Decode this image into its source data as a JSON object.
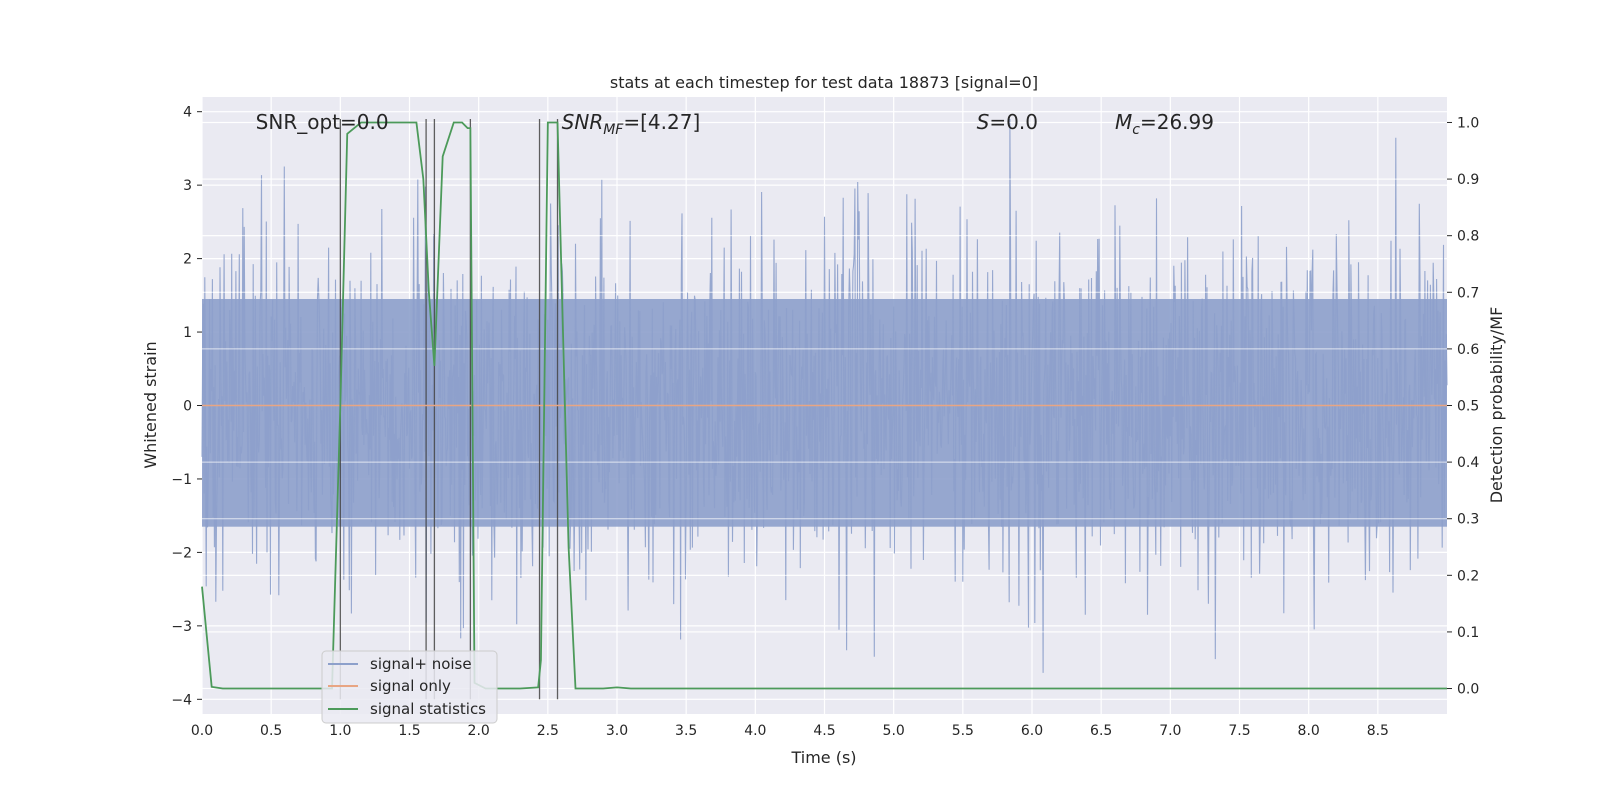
{
  "chart_data": {
    "type": "line",
    "title": "stats at each timestep for test data 18873 [signal=0]",
    "xlabel": "Time (s)",
    "ylabel_left": "Whitened strain",
    "ylabel_right": "Detection probability/MF",
    "xlim": [
      0.0,
      9.0
    ],
    "ylim_left": [
      -4.2,
      4.2
    ],
    "ylim_right": [
      -0.045,
      1.045
    ],
    "x_ticks": [
      0.0,
      0.5,
      1.0,
      1.5,
      2.0,
      2.5,
      3.0,
      3.5,
      4.0,
      4.5,
      5.0,
      5.5,
      6.0,
      6.5,
      7.0,
      7.5,
      8.0,
      8.5
    ],
    "x_tick_labels": [
      "0.0",
      "0.5",
      "1.0",
      "1.5",
      "2.0",
      "2.5",
      "3.0",
      "3.5",
      "4.0",
      "4.5",
      "5.0",
      "5.5",
      "6.0",
      "6.5",
      "7.0",
      "7.5",
      "8.0",
      "8.5"
    ],
    "y_left_ticks": [
      4,
      3,
      2,
      1,
      0,
      -1,
      -2,
      -3,
      -4
    ],
    "y_left_tick_labels": [
      "4",
      "3",
      "2",
      "1",
      "0",
      "−1",
      "−2",
      "−3",
      "−4"
    ],
    "y_right_ticks": [
      1.0,
      0.9,
      0.8,
      0.7,
      0.6,
      0.5,
      0.4,
      0.3,
      0.2,
      0.1,
      0.0
    ],
    "y_right_tick_labels": [
      "1.0",
      "0.9",
      "0.8",
      "0.7",
      "0.6",
      "0.5",
      "0.4",
      "0.3",
      "0.2",
      "0.1",
      "0.0"
    ],
    "grid": true,
    "annotations": [
      {
        "label": "SNR_opt=0.0",
        "x": 0.2,
        "y": 3.9
      },
      {
        "label": "SNR_MF=[4.27]",
        "x": 2.6,
        "y": 3.9
      },
      {
        "label": "S=0.0",
        "x": 5.6,
        "y": 3.9
      },
      {
        "label": "M_c=26.99",
        "x": 6.6,
        "y": 3.9
      }
    ],
    "vlines": [
      1.0,
      1.62,
      1.68,
      1.94,
      2.44,
      2.57
    ],
    "series": [
      {
        "name": "signal+ noise",
        "color": "#8da0cb",
        "axis": "left",
        "description": "whitened noise strain, approx uniform amplitude ±2.5 with peaks to ±3.8 across 0–9 s"
      },
      {
        "name": "signal only",
        "color": "#e8a583",
        "axis": "left",
        "x": [
          0.0,
          9.0
        ],
        "y": [
          0.0,
          0.0
        ]
      },
      {
        "name": "signal statistics",
        "color": "#4c9a5a",
        "axis": "right",
        "x": [
          0.0,
          0.07,
          0.15,
          0.5,
          0.9,
          0.94,
          1.0,
          1.05,
          1.15,
          1.3,
          1.4,
          1.55,
          1.6,
          1.64,
          1.68,
          1.74,
          1.82,
          1.88,
          1.92,
          1.94,
          1.97,
          2.05,
          2.15,
          2.3,
          2.43,
          2.45,
          2.5,
          2.57,
          2.65,
          2.7,
          2.9,
          3.0,
          3.1,
          9.0
        ],
        "y": [
          0.18,
          0.003,
          0.0,
          0.0,
          0.0,
          0.0,
          0.5,
          0.98,
          1.0,
          1.0,
          1.0,
          1.0,
          0.9,
          0.7,
          0.57,
          0.94,
          1.0,
          1.0,
          0.99,
          0.99,
          0.01,
          0.0,
          0.0,
          0.0,
          0.002,
          0.05,
          1.0,
          1.0,
          0.25,
          0.0,
          0.0,
          0.002,
          0.0,
          0.0
        ]
      }
    ],
    "legend": {
      "placement": "lower-left",
      "entries": [
        "signal+ noise",
        "signal only",
        "signal statistics"
      ]
    },
    "noise_seed": 18873
  }
}
